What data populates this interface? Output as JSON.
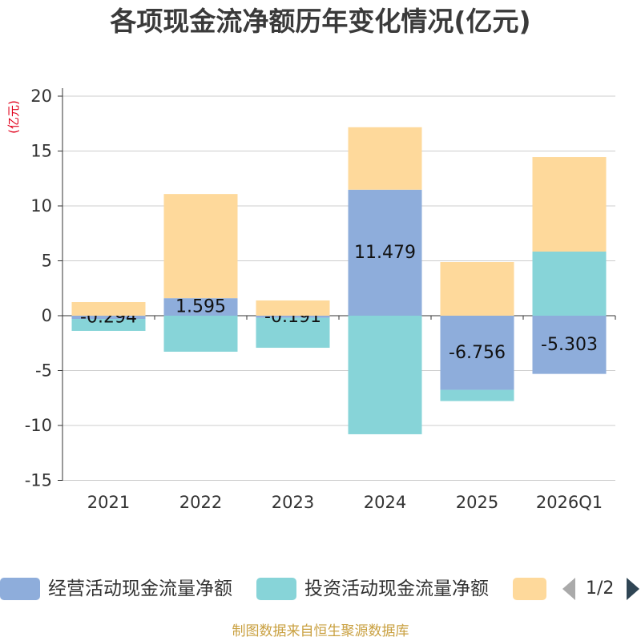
{
  "chart_data": {
    "type": "bar",
    "stacked": true,
    "title": "各项现金流净额历年变化情况(亿元)",
    "ylabel": "(亿元)",
    "categories": [
      "2021",
      "2022",
      "2023",
      "2024",
      "2025",
      "2026Q1"
    ],
    "ylim": [
      -15,
      20
    ],
    "yticks": [
      20,
      15,
      10,
      5,
      0,
      -5,
      -10,
      -15
    ],
    "grid": true,
    "legend_position": "bottom",
    "series": [
      {
        "name": "经营活动现金流量净额",
        "color": "#8eaddb",
        "show_labels": true,
        "values": [
          -0.294,
          1.595,
          -0.191,
          11.479,
          -6.756,
          -5.303
        ]
      },
      {
        "name": "投资活动现金流量净额",
        "color": "#87d4d8",
        "show_labels": false,
        "values": [
          -1.09,
          -3.28,
          -2.73,
          -10.8,
          -1.02,
          5.84
        ]
      },
      {
        "name": "",
        "color": "#fed99b",
        "show_labels": false,
        "values": [
          1.24,
          9.49,
          1.39,
          5.69,
          4.89,
          8.61
        ]
      }
    ]
  },
  "legend_pager": {
    "text": "1/2",
    "prev_icon": "triangle-left-icon",
    "next_icon": "triangle-right-icon",
    "prev_color": "#aaaaaa",
    "next_color": "#2f4554"
  },
  "source_note": "制图数据来自恒生聚源数据库",
  "colors": {
    "text": "#333333",
    "unit_label": "#e0001b",
    "gridline": "#cccccc",
    "axis": "#333333",
    "footer": "#c9a040"
  }
}
